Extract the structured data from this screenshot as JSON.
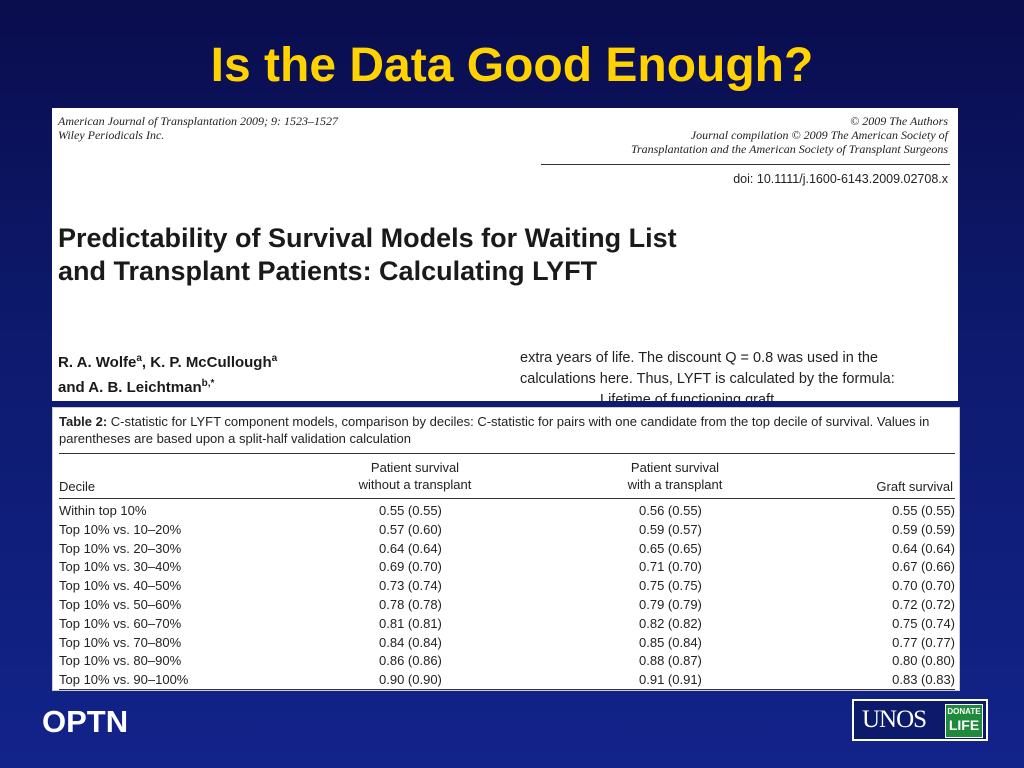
{
  "slide": {
    "title": "Is the Data Good Enough?",
    "footer_left": "OPTN",
    "logo": {
      "main_text": "UNOS",
      "badge_line1": "DONATE",
      "badge_line2": "LIFE"
    }
  },
  "paper": {
    "journal_line1": "American Journal of Transplantation 2009; 9: 1523–1527",
    "journal_line2": "Wiley Periodicals Inc.",
    "copyright_line1": "© 2009 The Authors",
    "copyright_line2": "Journal compilation © 2009 The American Society of",
    "copyright_line3": "Transplantation and the American Society of Transplant Surgeons",
    "doi": "doi: 10.1111/j.1600-6143.2009.02708.x",
    "title_line1": "Predictability of Survival Models for Waiting List",
    "title_line2": "and Transplant Patients: Calculating LYFT",
    "author1": "R. A. Wolfe",
    "author1_sup": "a",
    "author1_sep": ", K. P. McCullough",
    "author2_sup": "a",
    "author_line2": "and A. B. Leichtman",
    "author3_sup": "b,*",
    "excerpt_line1": "extra years of life. The discount Q = 0.8 was used in the",
    "excerpt_line2": "calculations here. Thus, LYFT is calculated by the formula:",
    "excerpt_line3": "Lifetime of functioning graft"
  },
  "table": {
    "caption_label": "Table 2:",
    "caption_text": " C-statistic for LYFT component models, comparison by deciles: C-statistic for pairs with one candidate from the top decile of survival. Values in parentheses are based upon a split-half validation calculation",
    "headers": {
      "decile": "Decile",
      "col1_line1": "Patient survival",
      "col1_line2": "without a transplant",
      "col2_line1": "Patient survival",
      "col2_line2": "with a transplant",
      "col3": "Graft survival"
    },
    "rows": [
      {
        "decile": "Within top 10%",
        "c1": "0.55 (0.55)",
        "c2": "0.56 (0.55)",
        "c3": "0.55 (0.55)"
      },
      {
        "decile": "Top 10% vs. 10–20%",
        "c1": "0.57 (0.60)",
        "c2": "0.59 (0.57)",
        "c3": "0.59 (0.59)"
      },
      {
        "decile": "Top 10% vs. 20–30%",
        "c1": "0.64 (0.64)",
        "c2": "0.65 (0.65)",
        "c3": "0.64 (0.64)"
      },
      {
        "decile": "Top 10% vs. 30–40%",
        "c1": "0.69 (0.70)",
        "c2": "0.71 (0.70)",
        "c3": "0.67 (0.66)"
      },
      {
        "decile": "Top 10% vs. 40–50%",
        "c1": "0.73 (0.74)",
        "c2": "0.75 (0.75)",
        "c3": "0.70 (0.70)"
      },
      {
        "decile": "Top 10% vs. 50–60%",
        "c1": "0.78 (0.78)",
        "c2": "0.79 (0.79)",
        "c3": "0.72 (0.72)"
      },
      {
        "decile": "Top 10% vs. 60–70%",
        "c1": "0.81 (0.81)",
        "c2": "0.82 (0.82)",
        "c3": "0.75 (0.74)"
      },
      {
        "decile": "Top 10% vs. 70–80%",
        "c1": "0.84 (0.84)",
        "c2": "0.85 (0.84)",
        "c3": "0.77 (0.77)"
      },
      {
        "decile": "Top 10% vs. 80–90%",
        "c1": "0.86 (0.86)",
        "c2": "0.88 (0.87)",
        "c3": "0.80 (0.80)"
      },
      {
        "decile": "Top 10% vs. 90–100%",
        "c1": "0.90 (0.90)",
        "c2": "0.91 (0.91)",
        "c3": "0.83 (0.83)"
      }
    ]
  }
}
